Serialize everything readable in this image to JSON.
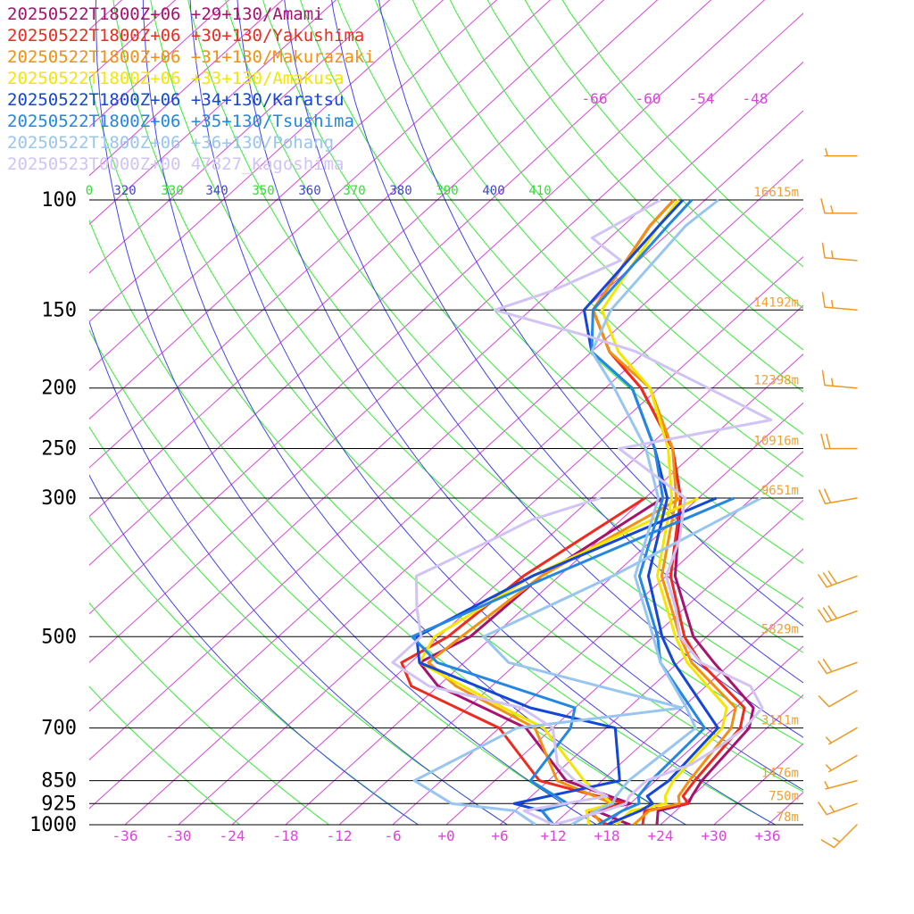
{
  "chart_data": {
    "type": "line",
    "diagram": "skew-T log-P",
    "legend_placement": "top-left",
    "x_tick_labels": [
      "-36",
      "-30",
      "-24",
      "-18",
      "-12",
      "-6",
      "+0",
      "+6",
      "+12",
      "+18",
      "+24",
      "+30",
      "+36"
    ],
    "x_ticks": [
      -36,
      -30,
      -24,
      -18,
      -12,
      -6,
      0,
      6,
      12,
      18,
      24,
      30,
      36
    ],
    "xlim": [
      -40,
      40
    ],
    "pressure_ticks": [
      100,
      150,
      200,
      250,
      300,
      500,
      700,
      850,
      925,
      1000
    ],
    "pressure_labels": [
      "100",
      "150",
      "200",
      "250",
      "300",
      "500",
      "700",
      "850",
      "925",
      "1000"
    ],
    "ylim": [
      1000,
      100
    ],
    "height_labels": [
      {
        "p": 100,
        "text": "16615m"
      },
      {
        "p": 150,
        "text": "14192m"
      },
      {
        "p": 200,
        "text": "12398m"
      },
      {
        "p": 250,
        "text": "10916m"
      },
      {
        "p": 300,
        "text": "9651m"
      },
      {
        "p": 500,
        "text": "5829m"
      },
      {
        "p": 700,
        "text": "3111m"
      },
      {
        "p": 850,
        "text": "1476m"
      },
      {
        "p": 925,
        "text": "750m"
      },
      {
        "p": 1000,
        "text": "78m"
      }
    ],
    "theta_labels": [
      "0",
      "320",
      "330",
      "340",
      "350",
      "360",
      "370",
      "380",
      "390",
      "400",
      "410"
    ],
    "mixing_ratio_labels": [
      "-66",
      "-60",
      "-54",
      "-48"
    ],
    "colors": {
      "isotherm": "#dd44dd",
      "dry_adiabat": "#33ee33",
      "moist_adiabat": "#4444ee",
      "theta_label_green": "#33dd33",
      "theta_label_blue": "#4444cc",
      "height_label": "#f0a030",
      "isobar": "#000000",
      "wind_barb": "#f09820"
    },
    "series": [
      {
        "name": "20250522T1800Z+06 +29+130/Amami",
        "color": "#a8116e",
        "temperature": [
          [
            1000,
            23.6
          ],
          [
            950,
            22.0
          ],
          [
            925,
            24.5
          ],
          [
            900,
            24.0
          ],
          [
            850,
            23.2
          ],
          [
            700,
            22.0
          ],
          [
            650,
            20.0
          ],
          [
            550,
            10.0
          ],
          [
            500,
            4.5
          ],
          [
            400,
            -5.0
          ],
          [
            300,
            -14.0
          ],
          [
            250,
            -21.0
          ],
          [
            200,
            -32.0
          ],
          [
            175,
            -40.0
          ],
          [
            150,
            -47.0
          ],
          [
            110,
            -51.0
          ],
          [
            100,
            -51.5
          ]
        ],
        "dewpoint": [
          [
            1000,
            20.6
          ],
          [
            950,
            15.0
          ],
          [
            925,
            18.0
          ],
          [
            850,
            8.0
          ],
          [
            700,
            -3.0
          ],
          [
            600,
            -18.0
          ],
          [
            550,
            -23.0
          ],
          [
            500,
            -20.5
          ],
          [
            400,
            -20.0
          ],
          [
            300,
            -16.0
          ]
        ]
      },
      {
        "name": "20250522T1800Z+06 +30+130/Yakushima",
        "color": "#ee2b1e",
        "temperature": [
          [
            1000,
            22.0
          ],
          [
            950,
            20.5
          ],
          [
            925,
            24.5
          ],
          [
            900,
            23.0
          ],
          [
            850,
            22.4
          ],
          [
            700,
            21.0
          ],
          [
            650,
            19.0
          ],
          [
            550,
            8.5
          ],
          [
            500,
            3.5
          ],
          [
            400,
            -5.5
          ],
          [
            300,
            -14.0
          ],
          [
            250,
            -21.0
          ],
          [
            200,
            -32.0
          ],
          [
            175,
            -40.0
          ],
          [
            150,
            -47.0
          ],
          [
            110,
            -51.0
          ],
          [
            100,
            -51.5
          ]
        ],
        "dewpoint": [
          [
            1000,
            18.0
          ],
          [
            950,
            14.0
          ],
          [
            925,
            17.5
          ],
          [
            850,
            5.0
          ],
          [
            700,
            -6.0
          ],
          [
            600,
            -21.0
          ],
          [
            550,
            -25.0
          ],
          [
            500,
            -23.0
          ],
          [
            400,
            -22.0
          ],
          [
            300,
            -18.0
          ]
        ]
      },
      {
        "name": "20250522T1800Z+06 +31+130/Makurazaki",
        "color": "#f39010",
        "temperature": [
          [
            1000,
            21.0
          ],
          [
            950,
            21.0
          ],
          [
            925,
            23.5
          ],
          [
            900,
            22.5
          ],
          [
            850,
            21.8
          ],
          [
            700,
            20.0
          ],
          [
            650,
            18.0
          ],
          [
            550,
            7.5
          ],
          [
            500,
            3.0
          ],
          [
            400,
            -6.5
          ],
          [
            300,
            -14.5
          ],
          [
            250,
            -21.0
          ],
          [
            200,
            -31.0
          ],
          [
            175,
            -40.0
          ],
          [
            150,
            -47.0
          ],
          [
            110,
            -51.0
          ],
          [
            100,
            -51.5
          ]
        ],
        "dewpoint": [
          [
            1000,
            17.5
          ],
          [
            950,
            14.5
          ],
          [
            925,
            16.0
          ],
          [
            850,
            7.0
          ],
          [
            700,
            -2.0
          ],
          [
            600,
            -16.0
          ],
          [
            550,
            -22.0
          ],
          [
            500,
            -21.5
          ],
          [
            400,
            -20.0
          ],
          [
            300,
            -14.0
          ]
        ]
      },
      {
        "name": "20250522T1800Z+06 +33+130/Amakusa",
        "color": "#f4e600",
        "temperature": [
          [
            1000,
            19.0
          ],
          [
            950,
            19.0
          ],
          [
            925,
            22.0
          ],
          [
            900,
            21.0
          ],
          [
            850,
            20.0
          ],
          [
            700,
            19.0
          ],
          [
            650,
            17.0
          ],
          [
            550,
            7.0
          ],
          [
            500,
            2.5
          ],
          [
            400,
            -7.0
          ],
          [
            300,
            -15.0
          ],
          [
            250,
            -21.5
          ],
          [
            200,
            -31.0
          ],
          [
            175,
            -39.0
          ],
          [
            150,
            -46.0
          ],
          [
            110,
            -50.0
          ],
          [
            100,
            -51.0
          ]
        ],
        "dewpoint": [
          [
            1000,
            16.0
          ],
          [
            950,
            14.0
          ],
          [
            925,
            16.0
          ],
          [
            850,
            10.0
          ],
          [
            700,
            -1.0
          ],
          [
            650,
            -8.0
          ],
          [
            550,
            -23.0
          ],
          [
            500,
            -24.5
          ],
          [
            400,
            -21.0
          ],
          [
            300,
            -12.0
          ]
        ]
      },
      {
        "name": "20250522T1800Z+06 +34+130/Karatsu",
        "color": "#1446d8",
        "temperature": [
          [
            1000,
            18.0
          ],
          [
            950,
            20.0
          ],
          [
            925,
            20.5
          ],
          [
            900,
            19.0
          ],
          [
            850,
            19.5
          ],
          [
            700,
            18.5
          ],
          [
            650,
            14.5
          ],
          [
            550,
            5.5
          ],
          [
            500,
            1.0
          ],
          [
            400,
            -8.0
          ],
          [
            300,
            -15.5
          ],
          [
            250,
            -23.0
          ],
          [
            200,
            -33.0
          ],
          [
            175,
            -42.0
          ],
          [
            150,
            -48.0
          ],
          [
            110,
            -50.0
          ],
          [
            100,
            -50.5
          ]
        ],
        "dewpoint": [
          [
            1000,
            12.0
          ],
          [
            950,
            9.0
          ],
          [
            925,
            5.0
          ],
          [
            850,
            14.0
          ],
          [
            700,
            7.0
          ],
          [
            650,
            -5.0
          ],
          [
            550,
            -23.0
          ],
          [
            500,
            -26.5
          ],
          [
            400,
            -21.0
          ],
          [
            300,
            -10.0
          ]
        ]
      },
      {
        "name": "20250522T1800Z+06 +35+130/Tsushima",
        "color": "#2487e2",
        "temperature": [
          [
            1000,
            17.0
          ],
          [
            950,
            18.0
          ],
          [
            925,
            19.0
          ],
          [
            900,
            18.0
          ],
          [
            850,
            17.5
          ],
          [
            700,
            17.0
          ],
          [
            650,
            13.0
          ],
          [
            550,
            4.0
          ],
          [
            500,
            0.5
          ],
          [
            400,
            -9.0
          ],
          [
            300,
            -16.0
          ],
          [
            250,
            -23.0
          ],
          [
            200,
            -33.0
          ],
          [
            175,
            -42.0
          ],
          [
            150,
            -47.0
          ],
          [
            110,
            -49.0
          ],
          [
            100,
            -49.5
          ]
        ],
        "dewpoint": [
          [
            1000,
            12.0
          ],
          [
            950,
            9.0
          ],
          [
            925,
            11.0
          ],
          [
            850,
            4.0
          ],
          [
            700,
            2.0
          ],
          [
            650,
            0.0
          ],
          [
            550,
            -21.0
          ],
          [
            500,
            -27.0
          ],
          [
            400,
            -19.0
          ],
          [
            300,
            -8.0
          ]
        ]
      },
      {
        "name": "20250522T1800Z+06 +36+130/Pohang",
        "color": "#98c6f0",
        "temperature": [
          [
            1000,
            14.0
          ],
          [
            950,
            15.0
          ],
          [
            925,
            16.0
          ],
          [
            900,
            15.5
          ],
          [
            850,
            15.0
          ],
          [
            700,
            16.0
          ],
          [
            650,
            12.5
          ],
          [
            550,
            4.0
          ],
          [
            500,
            0.0
          ],
          [
            400,
            -9.5
          ],
          [
            300,
            -16.5
          ],
          [
            250,
            -24.0
          ],
          [
            200,
            -35.0
          ],
          [
            175,
            -42.0
          ],
          [
            150,
            -45.0
          ],
          [
            110,
            -47.0
          ],
          [
            100,
            -46.5
          ]
        ],
        "dewpoint": [
          [
            1000,
            10.0
          ],
          [
            950,
            6.0
          ],
          [
            925,
            -2.0
          ],
          [
            850,
            -9.0
          ],
          [
            700,
            -4.0
          ],
          [
            650,
            12.0
          ],
          [
            550,
            -13.0
          ],
          [
            500,
            -19.0
          ],
          [
            400,
            -12.0
          ],
          [
            300,
            -5.0
          ]
        ]
      },
      {
        "name": "20250523T0000Z+00 47827_Kagoshima",
        "color": "#d1c3f4",
        "temperature": [
          [
            1000,
            12.0
          ],
          [
            950,
            16.0
          ],
          [
            925,
            17.5
          ],
          [
            900,
            17.0
          ],
          [
            850,
            17.0
          ],
          [
            800,
            20.0
          ],
          [
            750,
            21.0
          ],
          [
            700,
            21.5
          ],
          [
            650,
            21.0
          ],
          [
            600,
            17.0
          ],
          [
            550,
            8.5
          ],
          [
            500,
            3.0
          ],
          [
            450,
            -1.0
          ],
          [
            400,
            -6.0
          ],
          [
            350,
            -9.0
          ],
          [
            300,
            -13.5
          ],
          [
            250,
            -27.0
          ],
          [
            225,
            -13.5
          ],
          [
            200,
            -24.5
          ],
          [
            175,
            -37.0
          ],
          [
            165,
            -44.5
          ],
          [
            150,
            -58.0
          ],
          [
            140,
            -54.0
          ],
          [
            125,
            -50.0
          ],
          [
            115,
            -56.0
          ],
          [
            100,
            -53.0
          ]
        ],
        "dewpoint": [
          [
            1000,
            12.0
          ],
          [
            950,
            7.0
          ],
          [
            900,
            14.5
          ],
          [
            850,
            9.0
          ],
          [
            800,
            5.0
          ],
          [
            700,
            0.0
          ],
          [
            650,
            -6.0
          ],
          [
            600,
            -19.0
          ],
          [
            550,
            -26.0
          ],
          [
            500,
            -26.0
          ],
          [
            450,
            -30.0
          ],
          [
            400,
            -34.0
          ],
          [
            350,
            -30.0
          ],
          [
            325,
            -28.0
          ],
          [
            300,
            -23.0
          ]
        ]
      }
    ],
    "wind_barbs": [
      {
        "p": 1000,
        "dir_deg": 225,
        "speed_kt": 15
      },
      {
        "p": 925,
        "dir_deg": 250,
        "speed_kt": 15
      },
      {
        "p": 850,
        "dir_deg": 255,
        "speed_kt": 5
      },
      {
        "p": 775,
        "dir_deg": 240,
        "speed_kt": 5
      },
      {
        "p": 700,
        "dir_deg": 240,
        "speed_kt": 5
      },
      {
        "p": 610,
        "dir_deg": 240,
        "speed_kt": 10
      },
      {
        "p": 550,
        "dir_deg": 250,
        "speed_kt": 20
      },
      {
        "p": 455,
        "dir_deg": 250,
        "speed_kt": 30
      },
      {
        "p": 400,
        "dir_deg": 250,
        "speed_kt": 30
      },
      {
        "p": 300,
        "dir_deg": 260,
        "speed_kt": 20
      },
      {
        "p": 250,
        "dir_deg": 270,
        "speed_kt": 20
      },
      {
        "p": 200,
        "dir_deg": 275,
        "speed_kt": 15
      },
      {
        "p": 150,
        "dir_deg": 275,
        "speed_kt": 15
      },
      {
        "p": 125,
        "dir_deg": 275,
        "speed_kt": 15
      },
      {
        "p": 105,
        "dir_deg": 270,
        "speed_kt": 15
      },
      {
        "p": 85,
        "dir_deg": 270,
        "speed_kt": 5
      }
    ]
  }
}
